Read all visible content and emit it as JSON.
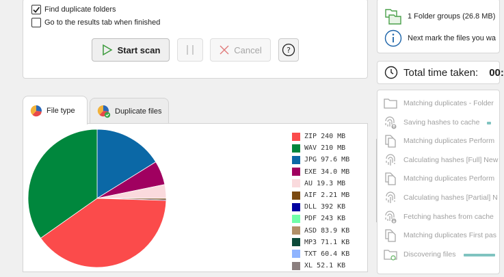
{
  "options": {
    "find_duplicate_folders": {
      "label": "Find duplicate folders",
      "checked": true
    },
    "go_to_results": {
      "label": "Go to the results tab when finished",
      "checked": false
    }
  },
  "toolbar": {
    "start_scan_label": "Start scan",
    "cancel_label": "Cancel"
  },
  "tabs": [
    {
      "label": "File type",
      "active": true
    },
    {
      "label": "Duplicate files",
      "active": false
    }
  ],
  "chart_data": {
    "type": "pie",
    "slices": [
      {
        "label": "ZIP",
        "size_text": "240 MB",
        "value": 240,
        "color": "#fb4b4b"
      },
      {
        "label": "WAV",
        "size_text": "210 MB",
        "value": 210,
        "color": "#00873d"
      },
      {
        "label": "JPG",
        "size_text": "97.6 MB",
        "value": 97.6,
        "color": "#0b68a6"
      },
      {
        "label": "EXE",
        "size_text": "34.0 MB",
        "value": 34.0,
        "color": "#a00060"
      },
      {
        "label": "AU",
        "size_text": "19.3 MB",
        "value": 19.3,
        "color": "#fadadd"
      },
      {
        "label": "AIF",
        "size_text": "2.21 MB",
        "value": 2.21,
        "color": "#7b4a12"
      },
      {
        "label": "DLL",
        "size_text": "392 KB",
        "value": 0.392,
        "color": "#0000a0"
      },
      {
        "label": "PDF",
        "size_text": "243 KB",
        "value": 0.243,
        "color": "#70ffa8"
      },
      {
        "label": "ASD",
        "size_text": "83.9 KB",
        "value": 0.0839,
        "color": "#b29068"
      },
      {
        "label": "MP3",
        "size_text": "71.1 KB",
        "value": 0.0711,
        "color": "#0c4a3a"
      },
      {
        "label": "TXT",
        "size_text": "60.4 KB",
        "value": 0.0604,
        "color": "#8fb4ff"
      },
      {
        "label": "XL",
        "size_text": "52.1 KB",
        "value": 0.0521,
        "color": "#8b7f7f"
      }
    ]
  },
  "summary": {
    "folder_groups": "1 Folder groups (26.8 MB)",
    "next_step": "Next mark the files you wa"
  },
  "time": {
    "label": "Total time taken:",
    "value": "00:"
  },
  "steps": [
    {
      "label": "Matching duplicates - Folder",
      "icon": "folder-icon",
      "progress": 0
    },
    {
      "label": "Saving hashes to cache",
      "icon": "fingerprint-upload-icon",
      "progress": 0.2
    },
    {
      "label": "Matching duplicates Perform",
      "icon": "duplicate-files-icon",
      "progress": 0
    },
    {
      "label": "Calculating hashes [Full] New",
      "icon": "fingerprint-icon",
      "progress": 0
    },
    {
      "label": "Matching duplicates Perform",
      "icon": "duplicate-files-icon",
      "progress": 0
    },
    {
      "label": "Calculating hashes [Partial] N",
      "icon": "fingerprint-icon",
      "progress": 0
    },
    {
      "label": "Fetching hashes from cache",
      "icon": "fingerprint-download-icon",
      "progress": 0
    },
    {
      "label": "Matching duplicates First pas",
      "icon": "duplicate-files-icon",
      "progress": 0
    },
    {
      "label": "Discovering files",
      "icon": "folder-search-icon",
      "progress": 0.85
    }
  ]
}
